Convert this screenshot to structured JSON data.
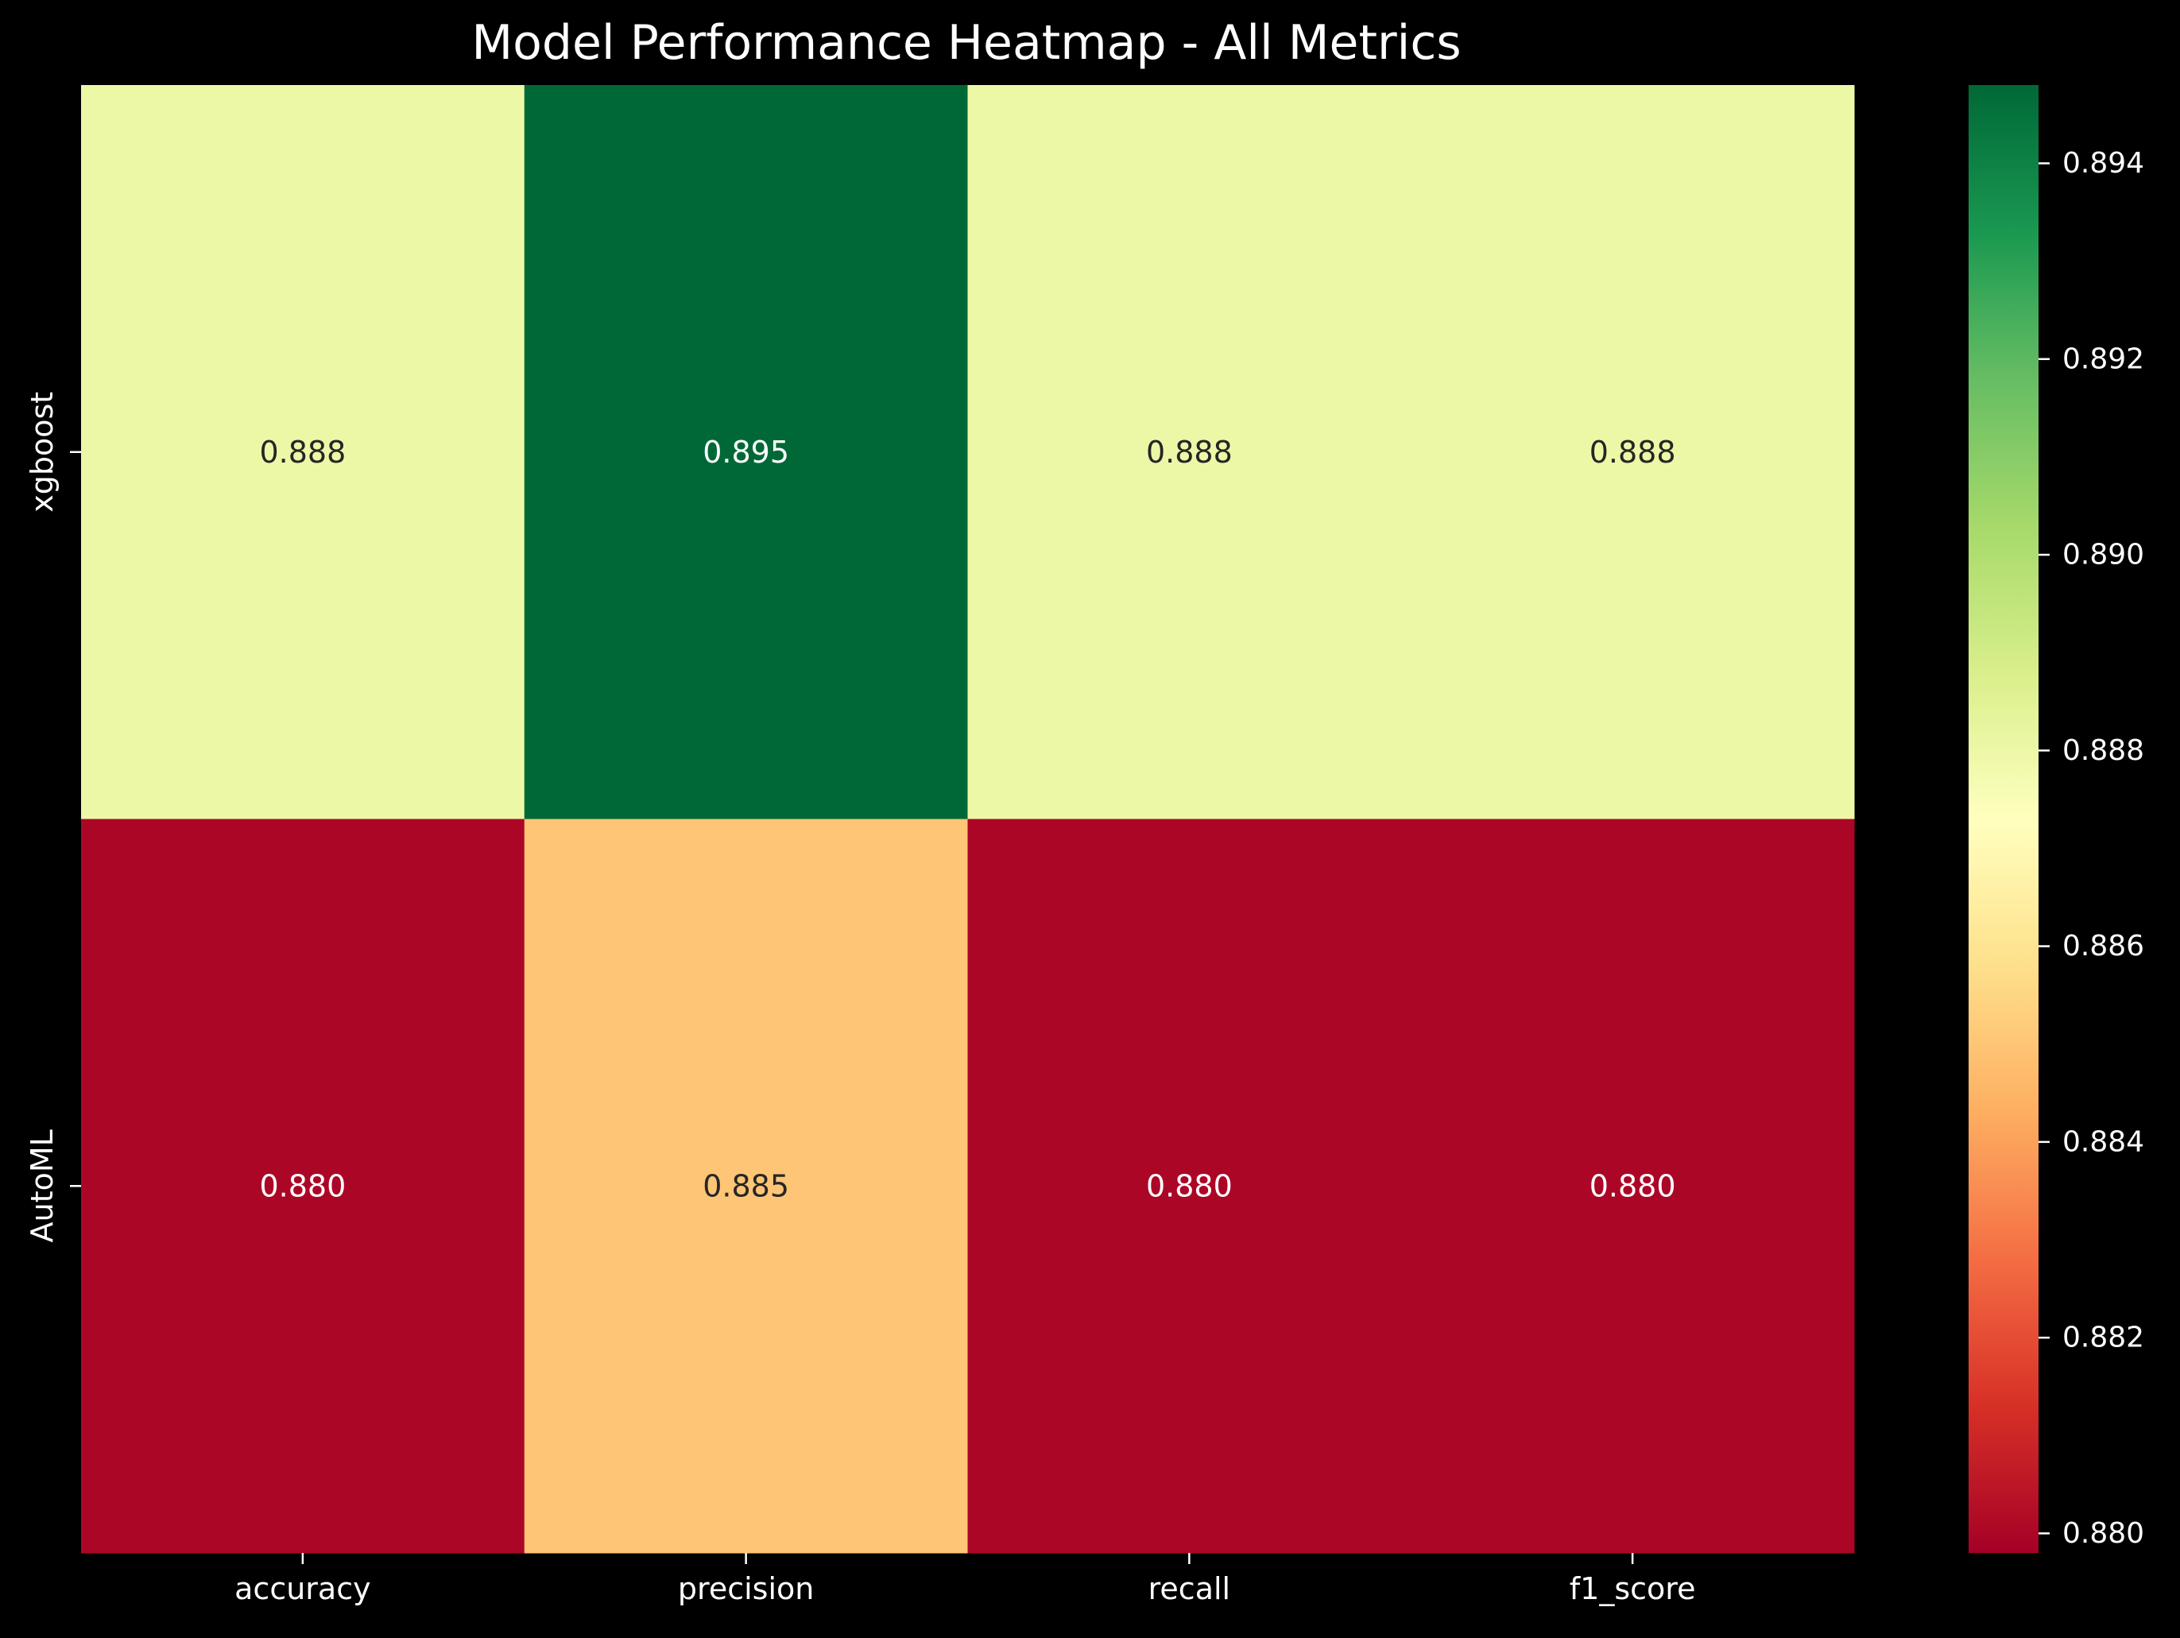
{
  "chart_data": {
    "type": "heatmap",
    "title": "Model Performance Heatmap - All Metrics",
    "columns": [
      "accuracy",
      "precision",
      "recall",
      "f1_score"
    ],
    "rows": [
      "xgboost",
      "AutoML"
    ],
    "values": [
      [
        0.888,
        0.895,
        0.888,
        0.888
      ],
      [
        0.88,
        0.885,
        0.88,
        0.88
      ]
    ],
    "value_labels": [
      [
        "0.888",
        "0.895",
        "0.888",
        "0.888"
      ],
      [
        "0.880",
        "0.885",
        "0.880",
        "0.880"
      ]
    ],
    "colormap": "RdYlGn",
    "vmin": 0.8798,
    "vmax": 0.8948,
    "colorbar_ticks": [
      "0.880",
      "0.882",
      "0.884",
      "0.886",
      "0.888",
      "0.890",
      "0.892",
      "0.894"
    ],
    "colorbar_tick_values": [
      0.88,
      0.882,
      0.884,
      0.886,
      0.888,
      0.89,
      0.892,
      0.894
    ],
    "xlabel": "",
    "ylabel": ""
  },
  "colors": {
    "background": "#000000",
    "text": "#ffffff",
    "cell_text_dark": "#262626",
    "cell_text_light": "#ffffff"
  }
}
